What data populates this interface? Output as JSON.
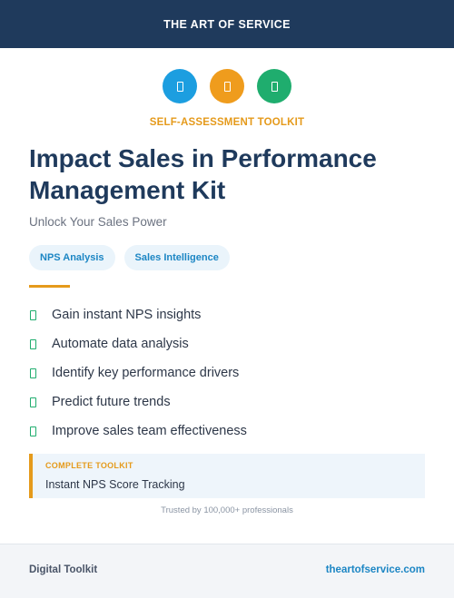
{
  "header": {
    "brand": "THE ART OF SERVICE"
  },
  "icons": [
    {
      "name": "document-icon",
      "color": "#1c9ee0"
    },
    {
      "name": "document-icon",
      "color": "#ef9c1d"
    },
    {
      "name": "document-icon",
      "color": "#1fad6e"
    }
  ],
  "hero": {
    "kicker": "SELF-ASSESSMENT TOOLKIT",
    "title": "Impact Sales in Performance Management Kit",
    "subtitle": "Unlock Your Sales Power"
  },
  "tags": [
    "NPS Analysis",
    "Sales Intelligence"
  ],
  "features": [
    "Gain instant NPS insights",
    "Automate data analysis",
    "Identify key performance drivers",
    "Predict future trends",
    "Improve sales team effectiveness"
  ],
  "callout": {
    "label": "COMPLETE TOOLKIT",
    "text": "Instant NPS Score Tracking"
  },
  "trusted": "Trusted by 100,000+ professionals",
  "footer": {
    "left": "Digital Toolkit",
    "right": "theartofservice.com"
  },
  "colors": {
    "navy": "#1f3a5c",
    "orange": "#e59a1b",
    "blue": "#1c86c4",
    "green": "#1fad6e"
  }
}
